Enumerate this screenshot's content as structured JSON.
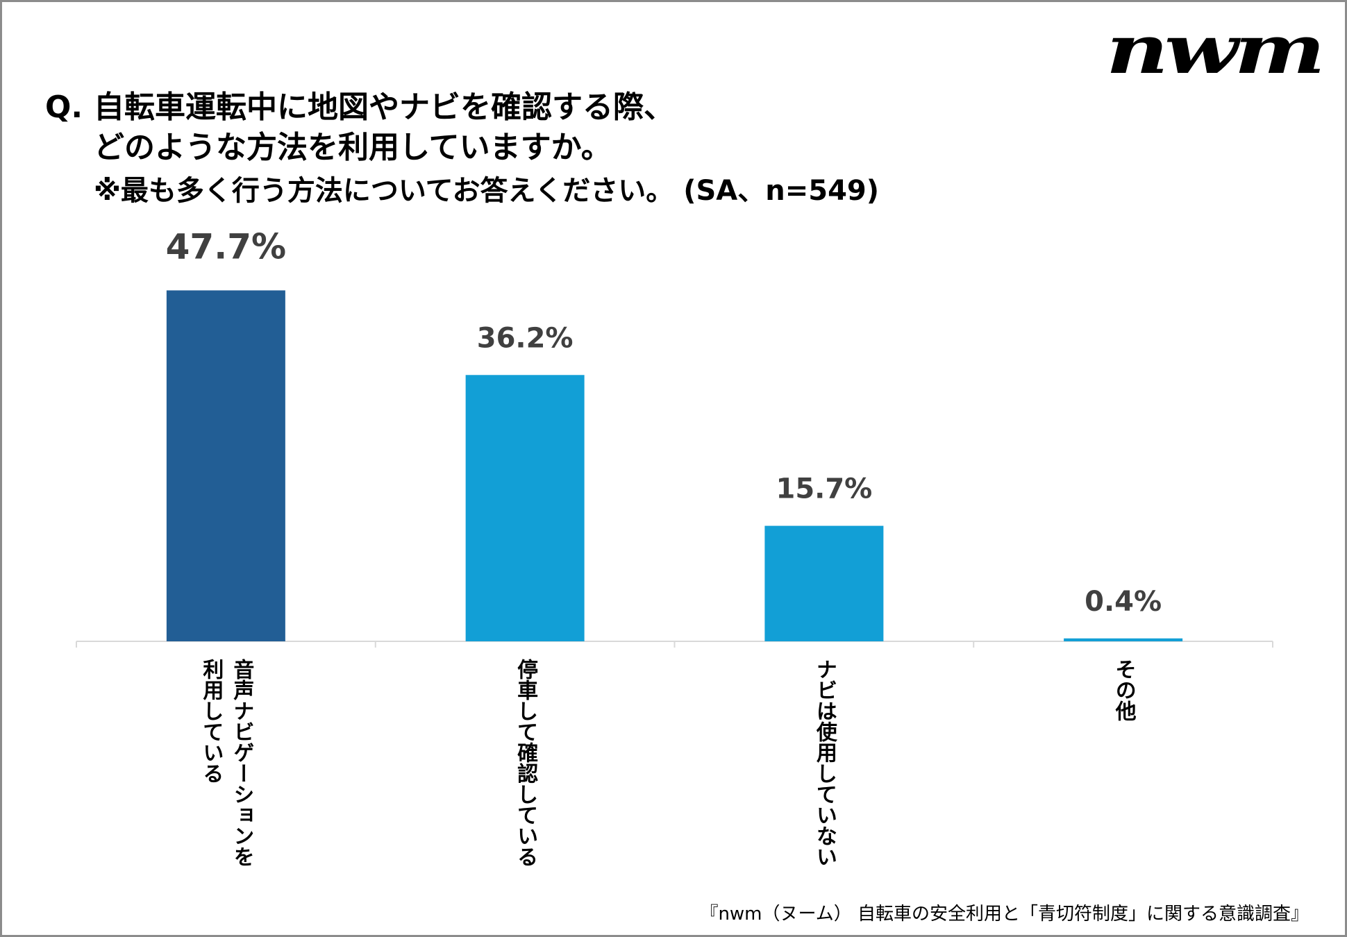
{
  "logo": "nwm",
  "title": {
    "prefix": "Q.",
    "line1": "自転車運転中に地図やナビを確認する際、",
    "line2": "どのような方法を利用していますか。",
    "line3": "※最も多く行う方法についてお答えください。 (SA、n=549)"
  },
  "chart_data": {
    "type": "bar",
    "title": "自転車運転中に地図やナビを確認する際、どのような方法を利用していますか。",
    "categories": [
      "音声ナビゲーションを利用している",
      "停車して確認している",
      "ナビは使用していない",
      "その他"
    ],
    "category_lines": [
      [
        "音声ナビゲーションを",
        "利用している"
      ],
      [
        "停車して確認している"
      ],
      [
        "ナビは使用していない"
      ],
      [
        "その他"
      ]
    ],
    "values": [
      47.7,
      36.2,
      15.7,
      0.4
    ],
    "value_labels": [
      "47.7%",
      "36.2%",
      "15.7%",
      "0.4%"
    ],
    "ylim": [
      0,
      50
    ],
    "xlabel": "",
    "ylabel": "",
    "grid": false,
    "colors": [
      "#225e95",
      "#129fd6",
      "#129fd6",
      "#129fd6"
    ]
  },
  "source": "『nwm（ヌーム） 自転車の安全利用と「青切符制度」に関する意識調査』"
}
